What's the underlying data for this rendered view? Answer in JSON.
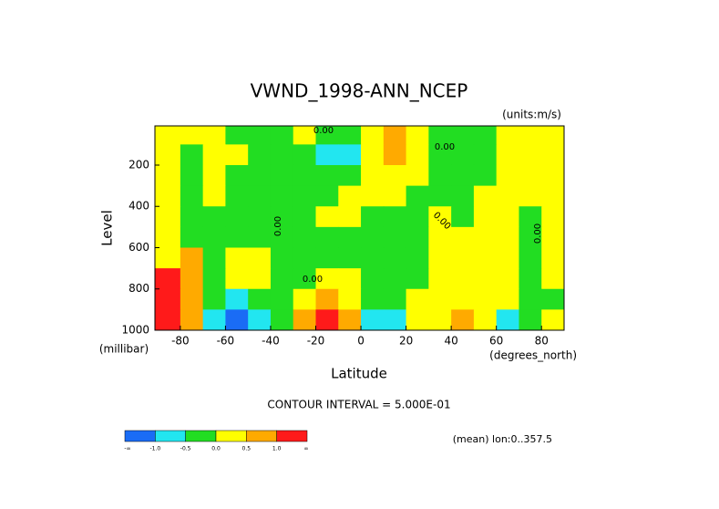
{
  "chart_data": {
    "type": "contour",
    "title": "VWND_1998-ANN_NCEP",
    "subtitle": "(units:m/s)",
    "x_label": "Latitude",
    "x_units": "(degrees_north)",
    "y_label": "Level",
    "y_units": "(millibar)",
    "footer": "CONTOUR INTERVAL = 5.000E-01",
    "note": "(mean) lon:0..357.5",
    "xlim": [
      -91.25,
      90
    ],
    "xticks": [
      -80,
      -60,
      -40,
      -20,
      0,
      20,
      40,
      60,
      80
    ],
    "ylim": [
      10,
      1000
    ],
    "yticks": [
      200,
      400,
      600,
      800,
      1000
    ],
    "y_inverted": true,
    "x": [
      -85,
      -75,
      -65,
      -55,
      -45,
      -35,
      -25,
      -15,
      -5,
      5,
      15,
      25,
      35,
      45,
      55,
      65,
      75,
      85
    ],
    "y": [
      50,
      150,
      250,
      350,
      450,
      550,
      650,
      750,
      850,
      950
    ],
    "z": [
      [
        0.2,
        0.2,
        0.1,
        -0.2,
        -0.2,
        -0.2,
        0.2,
        -0.2,
        -0.1,
        0.3,
        0.6,
        0.2,
        -0.1,
        -0.2,
        -0.2,
        0.2,
        0.3,
        0.2
      ],
      [
        0.2,
        -0.1,
        0.1,
        0.2,
        -0.2,
        -0.2,
        -0.3,
        -0.6,
        -0.6,
        0.2,
        0.7,
        0.3,
        -0.2,
        -0.2,
        -0.2,
        0.2,
        0.3,
        0.2
      ],
      [
        0.2,
        -0.2,
        0.2,
        -0.2,
        -0.2,
        -0.2,
        -0.3,
        -0.2,
        -0.1,
        0.3,
        0.3,
        0.2,
        -0.2,
        -0.2,
        -0.2,
        0.2,
        0.3,
        0.2
      ],
      [
        0.2,
        -0.2,
        0.2,
        -0.1,
        -0.2,
        -0.2,
        -0.2,
        -0.1,
        0.2,
        0.3,
        0.2,
        -0.1,
        -0.2,
        -0.2,
        0.2,
        0.3,
        0.3,
        0.2
      ],
      [
        0.2,
        -0.2,
        -0.2,
        -0.1,
        -0.2,
        -0.2,
        -0.2,
        0.2,
        0.3,
        -0.2,
        -0.2,
        -0.2,
        0.2,
        -0.2,
        0.3,
        0.3,
        -0.2,
        0.2
      ],
      [
        0.2,
        -0.2,
        -0.2,
        -0.1,
        -0.2,
        -0.2,
        -0.2,
        -0.2,
        -0.2,
        -0.2,
        -0.2,
        -0.2,
        0.2,
        0.3,
        0.3,
        0.2,
        -0.2,
        0.2
      ],
      [
        0.3,
        0.6,
        -0.2,
        0.2,
        0.2,
        -0.2,
        -0.2,
        -0.2,
        -0.2,
        -0.2,
        -0.2,
        -0.2,
        0.2,
        0.3,
        0.3,
        0.2,
        -0.2,
        0.2
      ],
      [
        1.2,
        0.7,
        -0.2,
        0.2,
        0.2,
        -0.2,
        -0.2,
        0.2,
        0.2,
        -0.2,
        -0.2,
        -0.2,
        0.2,
        0.3,
        0.3,
        0.3,
        -0.2,
        0.2
      ],
      [
        1.3,
        0.8,
        -0.2,
        -0.6,
        -0.3,
        -0.2,
        0.3,
        0.7,
        0.3,
        -0.2,
        -0.2,
        0.2,
        0.2,
        0.3,
        0.3,
        0.2,
        -0.2,
        -0.2
      ],
      [
        1.5,
        0.6,
        -0.7,
        -1.2,
        -0.6,
        -0.2,
        0.6,
        1.2,
        0.6,
        -0.6,
        -0.6,
        0.2,
        0.2,
        0.6,
        0.3,
        -0.6,
        -0.2,
        0.2
      ]
    ],
    "levels": [
      {
        "value": -1,
        "label": "-1.0"
      },
      {
        "value": -0.5,
        "label": "-0.5"
      },
      {
        "value": 0,
        "label": "0.0"
      },
      {
        "value": 0.5,
        "label": "0.5"
      },
      {
        "value": 1,
        "label": "1.0"
      }
    ],
    "level_low_label": "-∞",
    "level_high_label": "∞",
    "colors": [
      "#1a6cf5",
      "#22e6f0",
      "#22dd22",
      "#ffff00",
      "#ffaa00",
      "#ff1a1a"
    ],
    "contour_labels": [
      "0.00",
      "0.00",
      "0.00",
      "0.00",
      "0.00",
      "0.00"
    ]
  }
}
